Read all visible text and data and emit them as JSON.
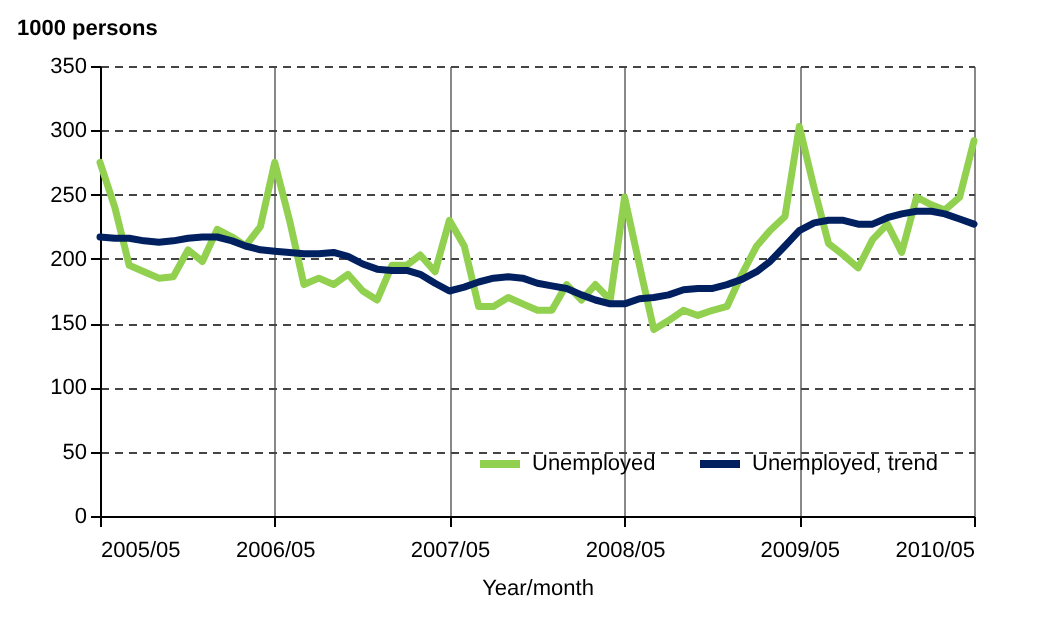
{
  "chart_data": {
    "type": "line",
    "ylabel": "1000 persons",
    "xlabel": "Year/month",
    "x": [
      "2005-05",
      "2005-06",
      "2005-07",
      "2005-08",
      "2005-09",
      "2005-10",
      "2005-11",
      "2005-12",
      "2006-01",
      "2006-02",
      "2006-03",
      "2006-04",
      "2006-05",
      "2006-06",
      "2006-07",
      "2006-08",
      "2006-09",
      "2006-10",
      "2006-11",
      "2006-12",
      "2007-01",
      "2007-02",
      "2007-03",
      "2007-04",
      "2007-05",
      "2007-06",
      "2007-07",
      "2007-08",
      "2007-09",
      "2007-10",
      "2007-11",
      "2007-12",
      "2008-01",
      "2008-02",
      "2008-03",
      "2008-04",
      "2008-05",
      "2008-06",
      "2008-07",
      "2008-08",
      "2008-09",
      "2008-10",
      "2008-11",
      "2008-12",
      "2009-01",
      "2009-02",
      "2009-03",
      "2009-04",
      "2009-05",
      "2009-06",
      "2009-07",
      "2009-08",
      "2009-09",
      "2009-10",
      "2009-11",
      "2009-12",
      "2010-01",
      "2010-02",
      "2010-03",
      "2010-04",
      "2010-05"
    ],
    "series": [
      {
        "name": "Unemployed",
        "color": "#92d050",
        "values": [
          275,
          240,
          195,
          190,
          185,
          186,
          207,
          198,
          223,
          217,
          210,
          225,
          275,
          230,
          180,
          185,
          180,
          188,
          175,
          168,
          195,
          195,
          203,
          190,
          230,
          210,
          163,
          163,
          170,
          165,
          160,
          160,
          180,
          168,
          180,
          168,
          248,
          195,
          145,
          152,
          160,
          156,
          160,
          163,
          188,
          210,
          222,
          233,
          303,
          255,
          212,
          203,
          193,
          215,
          227,
          205,
          248,
          242,
          238,
          248,
          292
        ]
      },
      {
        "name": "Unemployed, trend",
        "color": "#002060",
        "values": [
          217,
          216,
          216,
          214,
          213,
          214,
          216,
          217,
          217,
          214,
          210,
          207,
          206,
          205,
          204,
          204,
          205,
          202,
          196,
          192,
          191,
          191,
          188,
          181,
          175,
          178,
          182,
          185,
          186,
          185,
          181,
          179,
          177,
          172,
          168,
          165,
          165,
          169,
          170,
          172,
          176,
          177,
          177,
          180,
          184,
          190,
          198,
          210,
          222,
          228,
          230,
          230,
          227,
          227,
          232,
          235,
          237,
          237,
          235,
          231,
          227
        ]
      }
    ],
    "xlim": [
      "2005-05",
      "2010-05"
    ],
    "xticks": [
      {
        "value": "2005-05",
        "label": "2005/05"
      },
      {
        "value": "2006-05",
        "label": "2006/05"
      },
      {
        "value": "2007-05",
        "label": "2007/05"
      },
      {
        "value": "2008-05",
        "label": "2008/05"
      },
      {
        "value": "2009-05",
        "label": "2009/05"
      },
      {
        "value": "2010-05",
        "label": "2010/05"
      }
    ],
    "ylim": [
      0,
      350
    ],
    "yticks": [
      0,
      50,
      100,
      150,
      200,
      250,
      300,
      350
    ],
    "grid": true,
    "legend": "bottom right",
    "line_style": "solid",
    "marker": "none"
  }
}
